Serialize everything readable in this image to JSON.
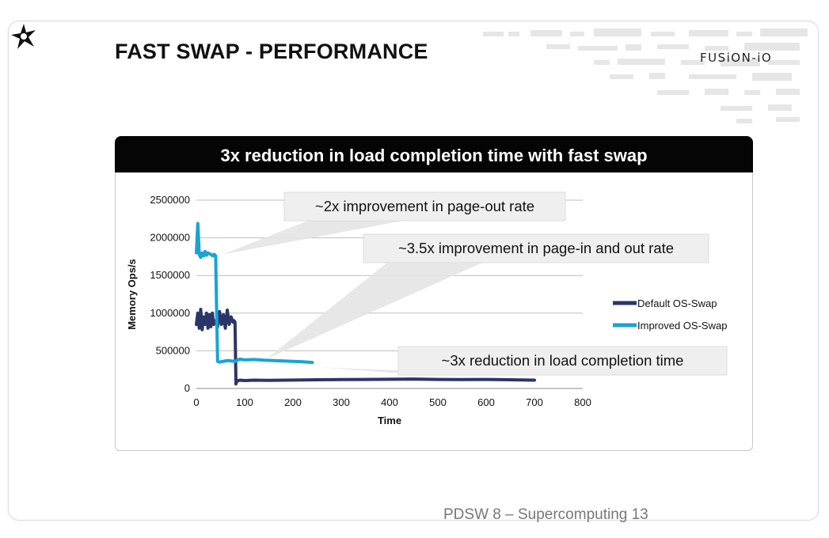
{
  "slide": {
    "title": "FAST SWAP - PERFORMANCE",
    "brand": "FUSiON-iO",
    "headline": "3x reduction in load completion time with fast swap",
    "footer": "PDSW 8 – Supercomputing 13"
  },
  "colors": {
    "default_series": "#2b3568",
    "improved_series": "#1aa3d6",
    "headline_bg": "#050505",
    "grid": "#bfbfbf"
  },
  "chart_data": {
    "type": "line",
    "title": "",
    "xlabel": "Time",
    "ylabel": "Memory Ops/s",
    "xlim": [
      0,
      800
    ],
    "ylim": [
      0,
      2500000
    ],
    "x_ticks": [
      0,
      100,
      200,
      300,
      400,
      500,
      600,
      700,
      800
    ],
    "y_ticks": [
      0,
      500000,
      1000000,
      1500000,
      2000000,
      2500000
    ],
    "grid": "horizontal",
    "legend_position": "right",
    "series": [
      {
        "name": "Default OS-Swap",
        "color": "#2b3568",
        "x": [
          0,
          3,
          6,
          9,
          12,
          15,
          18,
          21,
          24,
          27,
          30,
          33,
          36,
          40,
          44,
          48,
          52,
          56,
          60,
          64,
          68,
          72,
          76,
          78,
          80,
          82,
          84,
          90,
          100,
          120,
          150,
          200,
          250,
          300,
          350,
          400,
          450,
          500,
          550,
          600,
          650,
          700
        ],
        "y": [
          850000,
          1000000,
          800000,
          1050000,
          780000,
          950000,
          850000,
          1000000,
          800000,
          980000,
          820000,
          1000000,
          850000,
          900000,
          820000,
          1020000,
          850000,
          980000,
          800000,
          1040000,
          850000,
          950000,
          880000,
          900000,
          880000,
          60000,
          100000,
          110000,
          105000,
          110000,
          108000,
          112000,
          115000,
          118000,
          120000,
          122000,
          125000,
          120000,
          118000,
          120000,
          115000,
          110000
        ]
      },
      {
        "name": "Improved OS-Swap",
        "color": "#1aa3d6",
        "x": [
          0,
          3,
          6,
          9,
          12,
          15,
          18,
          21,
          24,
          27,
          30,
          34,
          37,
          40,
          42,
          44,
          48,
          55,
          65,
          80,
          90,
          100,
          120,
          140,
          160,
          180,
          200,
          220,
          240
        ],
        "y": [
          1800000,
          2190000,
          1780000,
          1740000,
          1800000,
          1760000,
          1820000,
          1770000,
          1800000,
          1790000,
          1780000,
          1760000,
          1780000,
          1760000,
          1000000,
          360000,
          350000,
          360000,
          370000,
          360000,
          390000,
          380000,
          385000,
          375000,
          370000,
          365000,
          360000,
          355000,
          345000
        ]
      }
    ],
    "annotations": [
      "~2x improvement in page-out  rate",
      "~3.5x improvement in page-in and out rate",
      "~3x reduction in load completion time"
    ]
  }
}
